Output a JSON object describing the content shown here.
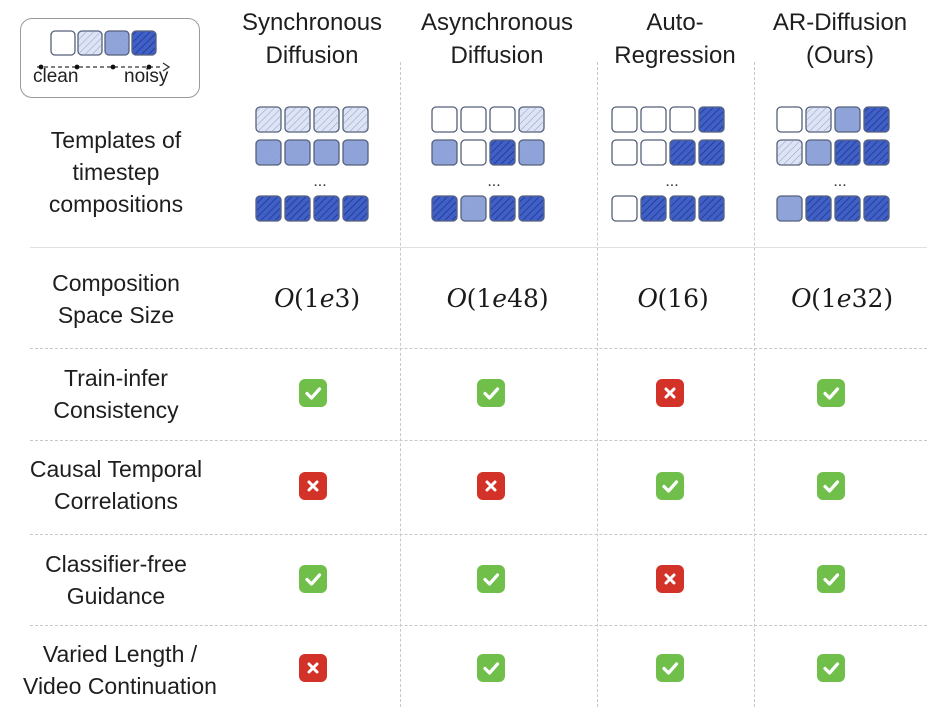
{
  "legend": {
    "caption_left": "clean",
    "caption_right": "noisy",
    "levels": [
      0,
      1,
      2,
      3
    ]
  },
  "columns": [
    {
      "id": "sync",
      "title_line1": "Synchronous",
      "title_line2": "Diffusion"
    },
    {
      "id": "async",
      "title_line1": "Asynchronous",
      "title_line2": "Diffusion"
    },
    {
      "id": "ar",
      "title_line1": "Auto-",
      "title_line2": "Regression"
    },
    {
      "id": "ard",
      "title_line1": "AR-Diffusion",
      "title_line2": "(Ours)"
    }
  ],
  "rows": {
    "templates": {
      "line1": "Templates of",
      "line2": "timestep",
      "line3": "compositions"
    },
    "space": {
      "line1": "Composition",
      "line2": "Space Size"
    },
    "train": {
      "line1": "Train-infer",
      "line2": "Consistency"
    },
    "causal": {
      "line1": "Causal Temporal",
      "line2": "Correlations"
    },
    "cfg": {
      "line1": "Classifier-free",
      "line2": "Guidance"
    },
    "varied": {
      "line1": "Varied Length /",
      "line2": "Video Continuation"
    }
  },
  "ellipsis": "...",
  "space_sizes": [
    {
      "O": "O",
      "open": "(1",
      "e": "e",
      "rest": "3)"
    },
    {
      "O": "O",
      "open": "(1",
      "e": "e",
      "rest": "48)"
    },
    {
      "O": "O",
      "open": "(16)",
      "e": "",
      "rest": ""
    },
    {
      "O": "O",
      "open": "(1",
      "e": "e",
      "rest": "32)"
    }
  ],
  "templates": [
    [
      [
        1,
        1,
        1,
        1
      ],
      [
        2,
        2,
        2,
        2
      ],
      [
        3,
        3,
        3,
        3
      ]
    ],
    [
      [
        0,
        0,
        0,
        1
      ],
      [
        2,
        0,
        3,
        2
      ],
      [
        3,
        2,
        3,
        3
      ]
    ],
    [
      [
        0,
        0,
        0,
        3
      ],
      [
        0,
        0,
        3,
        3
      ],
      [
        0,
        3,
        3,
        3
      ]
    ],
    [
      [
        0,
        1,
        2,
        3
      ],
      [
        1,
        2,
        3,
        3
      ],
      [
        2,
        3,
        3,
        3
      ]
    ]
  ],
  "marks": {
    "train": [
      "check",
      "check",
      "cross",
      "check"
    ],
    "causal": [
      "cross",
      "cross",
      "check",
      "check"
    ],
    "cfg": [
      "check",
      "check",
      "cross",
      "check"
    ],
    "varied": [
      "cross",
      "check",
      "check",
      "check"
    ]
  },
  "colors": {
    "level0": "#ffffff",
    "level1": "#dde4f5",
    "level2": "#8ea3dc",
    "level3": "#3f5fc9",
    "outline": "#55607a",
    "check": "#6fbf4a",
    "cross": "#d23228",
    "divider": "#c8c8c8"
  }
}
